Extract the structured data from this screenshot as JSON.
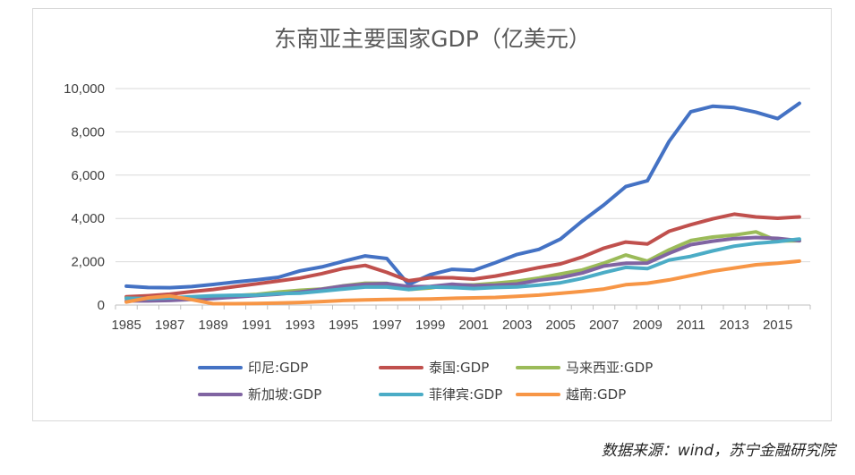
{
  "chart_data": {
    "type": "line",
    "title": "东南亚主要国家GDP（亿美元）",
    "xlabel": "",
    "ylabel": "",
    "ylim": [
      0,
      10000
    ],
    "yticks": [
      "0",
      "2,000",
      "4,000",
      "6,000",
      "8,000",
      "10,000"
    ],
    "ytick_values": [
      0,
      2000,
      4000,
      6000,
      8000,
      10000
    ],
    "xtick_labels": [
      "1985",
      "1987",
      "1989",
      "1991",
      "1993",
      "1995",
      "1997",
      "1999",
      "2001",
      "2003",
      "2005",
      "2007",
      "2009",
      "2011",
      "2013",
      "2015"
    ],
    "x": [
      1985,
      1986,
      1987,
      1988,
      1989,
      1990,
      1991,
      1992,
      1993,
      1994,
      1995,
      1996,
      1997,
      1998,
      1999,
      2000,
      2001,
      2002,
      2003,
      2004,
      2005,
      2006,
      2007,
      2008,
      2009,
      2010,
      2011,
      2012,
      2013,
      2014,
      2015,
      2016
    ],
    "grid": true,
    "legend_position": "bottom",
    "series": [
      {
        "name": "印尼:GDP",
        "color": "#4472c4",
        "values": [
          870,
          810,
          800,
          850,
          950,
          1060,
          1160,
          1280,
          1580,
          1760,
          2020,
          2270,
          2150,
          950,
          1400,
          1650,
          1600,
          1960,
          2340,
          2570,
          3050,
          3880,
          4630,
          5470,
          5740,
          7560,
          8930,
          9180,
          9120,
          8910,
          8610,
          9320
        ]
      },
      {
        "name": "泰国:GDP",
        "color": "#c0504d",
        "values": [
          380,
          430,
          500,
          620,
          720,
          850,
          980,
          1110,
          1250,
          1450,
          1690,
          1830,
          1510,
          1120,
          1260,
          1260,
          1200,
          1340,
          1530,
          1730,
          1900,
          2220,
          2630,
          2910,
          2820,
          3410,
          3710,
          3980,
          4200,
          4070,
          4010,
          4070
        ]
      },
      {
        "name": "马来西亚:GDP",
        "color": "#9bbb59",
        "values": [
          320,
          280,
          320,
          350,
          390,
          440,
          490,
          600,
          680,
          740,
          890,
          1010,
          1000,
          720,
          790,
          940,
          930,
          1010,
          1100,
          1250,
          1440,
          1620,
          1940,
          2310,
          2030,
          2550,
          2980,
          3140,
          3230,
          3380,
          2960,
          2970
        ]
      },
      {
        "name": "新加坡:GDP",
        "color": "#8064a2",
        "values": [
          190,
          190,
          210,
          260,
          300,
          370,
          440,
          500,
          600,
          730,
          880,
          960,
          990,
          850,
          860,
          960,
          900,
          920,
          970,
          1150,
          1270,
          1480,
          1800,
          1930,
          1940,
          2390,
          2790,
          2950,
          3070,
          3120,
          3080,
          2970
        ]
      },
      {
        "name": "菲律宾:GDP",
        "color": "#4bacc6",
        "values": [
          310,
          300,
          330,
          380,
          430,
          450,
          460,
          530,
          550,
          640,
          740,
          830,
          830,
          720,
          830,
          810,
          760,
          810,
          840,
          920,
          1030,
          1230,
          1500,
          1740,
          1680,
          2080,
          2250,
          2500,
          2720,
          2850,
          2930,
          3050
        ]
      },
      {
        "name": "越南:GDP",
        "color": "#f79646",
        "values": [
          140,
          330,
          420,
          250,
          60,
          60,
          70,
          90,
          120,
          160,
          210,
          240,
          260,
          270,
          280,
          310,
          330,
          350,
          400,
          460,
          540,
          630,
          740,
          940,
          1010,
          1160,
          1360,
          1560,
          1710,
          1860,
          1930,
          2030
        ]
      }
    ]
  },
  "source_note": "数据来源：wind，苏宁金融研究院"
}
